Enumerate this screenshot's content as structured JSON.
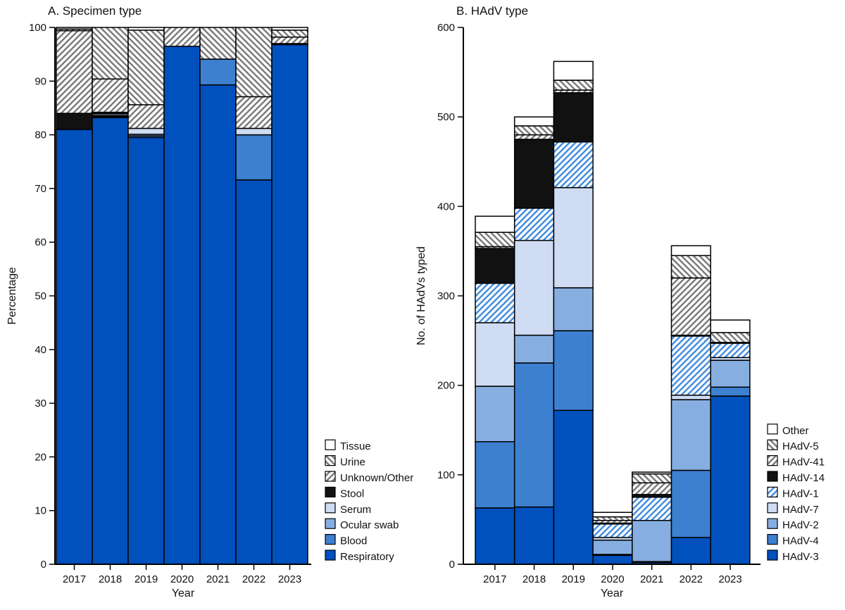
{
  "colors": {
    "respiratory": "#0050be",
    "blood": "#3d80cf",
    "ocular": "#87aee0",
    "serum": "#cfdcf3",
    "stool": "#111111",
    "hatchBlue": "#3d8ae0",
    "hatchGray": "#777777",
    "white": "#ffffff"
  },
  "chart_data": [
    {
      "type": "bar",
      "stacked": true,
      "title": "A. Specimen type",
      "xlabel": "Year",
      "ylabel": "Percentage",
      "ylim": [
        0,
        100
      ],
      "yticks": [
        0,
        10,
        20,
        30,
        40,
        50,
        60,
        70,
        80,
        90,
        100
      ],
      "categories": [
        "2017",
        "2018",
        "2019",
        "2020",
        "2021",
        "2022",
        "2023"
      ],
      "legend": "right-bottom",
      "series": [
        {
          "name": "Respiratory",
          "fill": "respiratory",
          "values": [
            81.0,
            83.2,
            79.5,
            96.5,
            89.3,
            71.6,
            96.8
          ]
        },
        {
          "name": "Blood",
          "fill": "blood",
          "values": [
            0,
            0.2,
            0.3,
            0,
            4.8,
            8.4,
            0.2
          ]
        },
        {
          "name": "Ocular swab",
          "fill": "ocular",
          "values": [
            0,
            0.2,
            0.3,
            0,
            0,
            0,
            0
          ]
        },
        {
          "name": "Serum",
          "fill": "serum",
          "values": [
            0,
            0.3,
            1.1,
            0,
            0,
            1.2,
            0
          ]
        },
        {
          "name": "Stool",
          "fill": "stool",
          "values": [
            3.0,
            0.3,
            0,
            0,
            0,
            0,
            0
          ]
        },
        {
          "name": "Unknown/Other",
          "fill": "hatch-fwd",
          "values": [
            15.4,
            6.2,
            4.4,
            3.5,
            0,
            5.9,
            1.2
          ]
        },
        {
          "name": "Urine",
          "fill": "hatch-back",
          "values": [
            0.3,
            9.6,
            13.9,
            0,
            5.9,
            12.9,
            1.3
          ]
        },
        {
          "name": "Tissue",
          "fill": "white",
          "values": [
            0.3,
            0,
            0.5,
            0,
            0,
            0,
            0.5
          ]
        }
      ]
    },
    {
      "type": "bar",
      "stacked": true,
      "title": "B. HAdV type",
      "xlabel": "Year",
      "ylabel": "No. of HAdVs typed",
      "ylim": [
        0,
        600
      ],
      "yticks": [
        0,
        100,
        200,
        300,
        400,
        500,
        600
      ],
      "categories": [
        "2017",
        "2018",
        "2019",
        "2020",
        "2021",
        "2022",
        "2023"
      ],
      "legend": "right-bottom",
      "series": [
        {
          "name": "HAdV-3",
          "fill": "respiratory",
          "values": [
            63,
            64,
            172,
            10,
            2,
            30,
            188
          ]
        },
        {
          "name": "HAdV-4",
          "fill": "blood",
          "values": [
            74,
            161,
            89,
            1,
            1,
            75,
            10
          ]
        },
        {
          "name": "HAdV-2",
          "fill": "ocular",
          "values": [
            62,
            31,
            48,
            16,
            46,
            79,
            30
          ]
        },
        {
          "name": "HAdV-7",
          "fill": "serum",
          "values": [
            71,
            106,
            112,
            3,
            0,
            5,
            3
          ]
        },
        {
          "name": "HAdV-1",
          "fill": "hatch-blue",
          "values": [
            44,
            36,
            51,
            15,
            26,
            66,
            16
          ]
        },
        {
          "name": "HAdV-14",
          "fill": "stool",
          "values": [
            39,
            77,
            55,
            1,
            3,
            1,
            1
          ]
        },
        {
          "name": "HAdV-41",
          "fill": "hatch-fwd",
          "values": [
            2,
            5,
            3,
            3,
            13,
            64,
            0
          ]
        },
        {
          "name": "HAdV-5",
          "fill": "hatch-back",
          "values": [
            16,
            10,
            11,
            4,
            10,
            25,
            11
          ]
        },
        {
          "name": "Other",
          "fill": "white",
          "values": [
            18,
            10,
            21,
            5,
            2,
            11,
            14
          ]
        }
      ]
    }
  ]
}
